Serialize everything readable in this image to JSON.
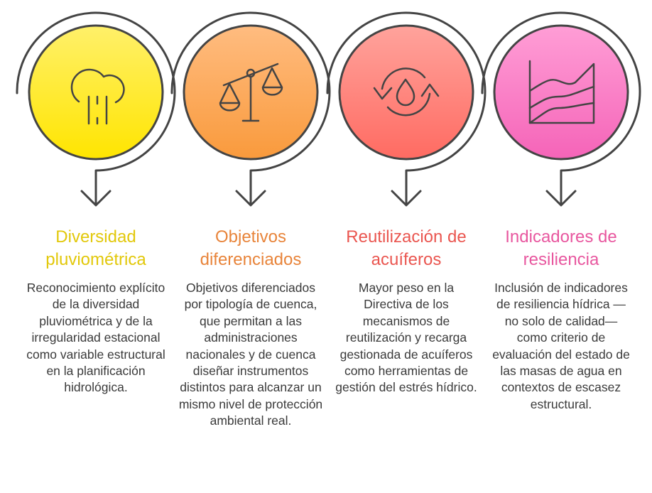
{
  "steps": [
    {
      "title": "Diversidad pluviométrica",
      "text": "Reconocimiento explícito de la diversidad pluviométrica y de la irregularidad estacional como variable estructural en la planificación hidrológica.",
      "icon": "cloud-rain-icon",
      "color": "#e2c80a",
      "fill_top": "#fff06a",
      "fill_bottom": "#ffe500"
    },
    {
      "title": "Objetivos diferenciados",
      "text": "Objetivos diferenciados por tipología de cuenca, que permitan a las administraciones nacionales y de cuenca diseñar instrumentos distintos para alcanzar un mismo nivel de protección ambiental real.",
      "icon": "balance-scale-icon",
      "color": "#e8843a",
      "fill_top": "#ffbc80",
      "fill_bottom": "#f99a3c"
    },
    {
      "title": "Reutilización de acuíferos",
      "text": "Mayor peso en la Directiva de los mecanismos de reutilización y recarga gestionada de acuíferos como herramientas de gestión del estrés hídrico.",
      "icon": "water-recycle-icon",
      "color": "#ea5650",
      "fill_top": "#ffa39c",
      "fill_bottom": "#ff6b62"
    },
    {
      "title": "Indicadores de resiliencia",
      "text": "Inclusión de indicadores de resiliencia hídrica — no solo de calidad— como criterio de evaluación del estado de las masas de agua en contextos de escasez estructural.",
      "icon": "area-chart-icon",
      "color": "#e8579f",
      "fill_top": "#ff9ed6",
      "fill_bottom": "#f564b8"
    }
  ]
}
